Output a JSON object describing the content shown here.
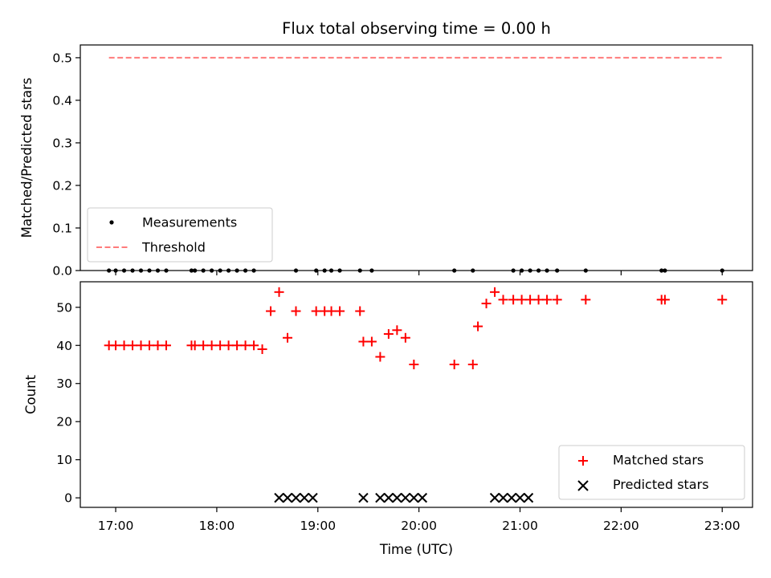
{
  "chart_data": [
    {
      "type": "scatter",
      "title": "Flux total observing time = 0.00 h",
      "xlabel": "",
      "ylabel": "Matched/Predicted stars",
      "xlim": [
        "16:39",
        "23:18"
      ],
      "ylim": [
        0,
        0.53
      ],
      "yticks": [
        "0.0",
        "0.1",
        "0.2",
        "0.3",
        "0.4",
        "0.5"
      ],
      "ytick_values": [
        0,
        0.1,
        0.2,
        0.3,
        0.4,
        0.5
      ],
      "xticks": [
        "17:00",
        "18:00",
        "19:00",
        "20:00",
        "21:00",
        "22:00",
        "23:00"
      ],
      "show_xtick_labels": false,
      "grid": false,
      "legend_position": "lower-left",
      "series": [
        {
          "name": "Measurements",
          "kind": "points",
          "color": "#000000",
          "x": [
            "16:56",
            "17:00",
            "17:05",
            "17:10",
            "17:15",
            "17:20",
            "17:25",
            "17:30",
            "17:45",
            "17:47",
            "17:52",
            "17:57",
            "18:02",
            "18:07",
            "18:12",
            "18:17",
            "18:22",
            "18:47",
            "18:59",
            "19:04",
            "19:08",
            "19:13",
            "19:25",
            "19:32",
            "20:21",
            "20:32",
            "20:56",
            "21:01",
            "21:06",
            "21:11",
            "21:16",
            "21:22",
            "21:39",
            "22:24",
            "22:26",
            "23:00"
          ],
          "y": [
            0,
            0,
            0,
            0,
            0,
            0,
            0,
            0,
            0,
            0,
            0,
            0,
            0,
            0,
            0,
            0,
            0,
            0,
            0,
            0,
            0,
            0,
            0,
            0,
            0,
            0,
            0,
            0,
            0,
            0,
            0,
            0,
            0,
            0,
            0,
            0
          ]
        },
        {
          "name": "Threshold",
          "kind": "dashed-line",
          "color": "#ff7b7b",
          "x": [
            "16:56",
            "23:00"
          ],
          "y": [
            0.5,
            0.5
          ]
        }
      ]
    },
    {
      "type": "scatter",
      "title": "",
      "xlabel": "Time (UTC)",
      "ylabel": "Count",
      "xlim": [
        "16:39",
        "23:18"
      ],
      "ylim": [
        -2.5,
        56.7
      ],
      "yticks": [
        "0",
        "10",
        "20",
        "30",
        "40",
        "50"
      ],
      "ytick_values": [
        0,
        10,
        20,
        30,
        40,
        50
      ],
      "xticks": [
        "17:00",
        "18:00",
        "19:00",
        "20:00",
        "21:00",
        "22:00",
        "23:00"
      ],
      "show_xtick_labels": true,
      "grid": false,
      "legend_position": "lower-right",
      "series": [
        {
          "name": "Matched stars",
          "marker": "plus",
          "color": "#ff0000",
          "x": [
            "16:56",
            "17:00",
            "17:05",
            "17:10",
            "17:15",
            "17:20",
            "17:25",
            "17:30",
            "17:45",
            "17:47",
            "17:52",
            "17:57",
            "18:02",
            "18:07",
            "18:12",
            "18:17",
            "18:22",
            "18:27",
            "18:32",
            "18:37",
            "18:42",
            "18:47",
            "18:59",
            "19:04",
            "19:08",
            "19:13",
            "19:25",
            "19:27",
            "19:32",
            "19:37",
            "19:42",
            "19:47",
            "19:52",
            "19:57",
            "20:21",
            "20:32",
            "20:35",
            "20:40",
            "20:45",
            "20:50",
            "20:56",
            "21:01",
            "21:06",
            "21:11",
            "21:16",
            "21:22",
            "21:39",
            "22:24",
            "22:26",
            "23:00"
          ],
          "y": [
            40,
            40,
            40,
            40,
            40,
            40,
            40,
            40,
            40,
            40,
            40,
            40,
            40,
            40,
            40,
            40,
            40,
            39,
            49,
            54,
            42,
            49,
            49,
            49,
            49,
            49,
            49,
            41,
            41,
            37,
            43,
            44,
            42,
            35,
            35,
            35,
            45,
            51,
            54,
            52,
            52,
            52,
            52,
            52,
            52,
            52,
            52,
            52,
            52,
            52
          ]
        },
        {
          "name": "Predicted stars",
          "marker": "x",
          "color": "#000000",
          "x": [
            "18:37",
            "18:42",
            "18:47",
            "18:52",
            "18:57",
            "19:27",
            "19:37",
            "19:42",
            "19:47",
            "19:52",
            "19:57",
            "20:02",
            "20:45",
            "20:50",
            "20:55",
            "21:00",
            "21:05"
          ],
          "y": [
            0,
            0,
            0,
            0,
            0,
            0,
            0,
            0,
            0,
            0,
            0,
            0,
            0,
            0,
            0,
            0,
            0
          ]
        }
      ]
    }
  ]
}
